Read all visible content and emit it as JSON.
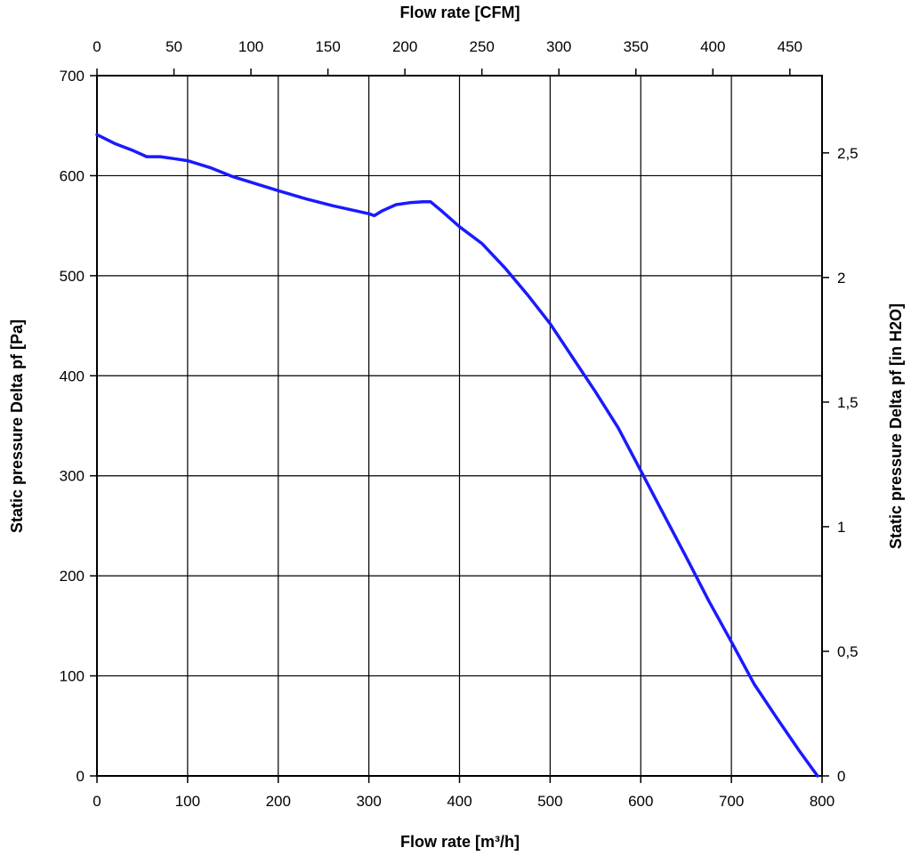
{
  "chart_data": {
    "type": "line",
    "xlabel": "Flow rate [m³/h]",
    "x2label": "Flow rate [CFM]",
    "ylabel": "Static pressure Delta pf [Pa]",
    "y2label": "Static pressure Delta pf [in H2O]",
    "xlim": [
      0,
      800
    ],
    "ylim": [
      0,
      700
    ],
    "x2lim": [
      0,
      470.9
    ],
    "y2lim": [
      0,
      2.81
    ],
    "x_ticks": [
      "0",
      "100",
      "200",
      "300",
      "400",
      "500",
      "600",
      "700",
      "800"
    ],
    "y_ticks": [
      "0",
      "100",
      "200",
      "300",
      "400",
      "500",
      "600",
      "700"
    ],
    "x2_ticks": [
      "0",
      "50",
      "100",
      "150",
      "200",
      "250",
      "300",
      "350",
      "400",
      "450"
    ],
    "y2_ticks": [
      "0",
      "0,5",
      "1",
      "1,5",
      "2",
      "2,5"
    ],
    "grid": true,
    "line_color": "#1a1aff",
    "series": [
      {
        "x": [
          0,
          20,
          40,
          55,
          70,
          85,
          100,
          125,
          150,
          175,
          200,
          230,
          260,
          290,
          300,
          306,
          315,
          330,
          345,
          360,
          368,
          380,
          400,
          425,
          450,
          475,
          500,
          525,
          550,
          575,
          600,
          625,
          650,
          675,
          700,
          725,
          750,
          775,
          795
        ],
        "y": [
          641,
          632,
          625,
          619,
          619,
          617,
          615,
          608,
          599,
          592,
          585,
          577,
          570,
          564,
          562,
          560,
          565,
          571,
          573,
          574,
          574,
          565,
          549,
          532,
          508,
          481,
          452,
          418,
          384,
          348,
          305,
          262,
          219,
          175,
          134,
          92,
          58,
          25,
          0
        ]
      }
    ]
  }
}
